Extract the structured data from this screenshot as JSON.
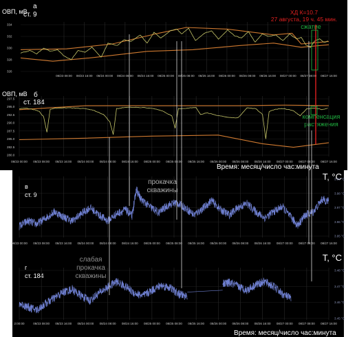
{
  "colors": {
    "background": "#000000",
    "grid": "#2a2a2a",
    "orvl": "#c8c86a",
    "envelope": "#d07a30",
    "temperature": "#6e7fd0",
    "marker_red": "#e02020",
    "marker_green": "#20b040",
    "guide": "#d8d8d8",
    "text": "#ffffff",
    "dim_text": "#c8c8c8",
    "temp_text": "#8a93b8"
  },
  "annotations": {
    "xd_line1": "ХД К=10.7",
    "xd_line2": "27 августа, 19 ч. 45 мин.",
    "compression": "сжатие",
    "compensation_line1": "компенсация",
    "compensation_line2": "растяжения",
    "pumping_line1": "прокачка",
    "pumping_line2": "скважины",
    "weak_line1": "слабая",
    "weak_line2": "прокачка",
    "weak_line3": "скважины",
    "time_axis": "Время: месяц/число час:минута"
  },
  "chart_data": [
    {
      "type": "line",
      "panel_letter": "а",
      "station": "ст. 9",
      "ylabel": "ОВП, мВ",
      "yticks": [
        "334",
        "332",
        "330",
        "328",
        "326"
      ],
      "xticks": [
        "08/23 08:00",
        "08/23 16:00",
        "08/24 00:00",
        "08/24 08:00",
        "08/24 16:00",
        "08/25 00:00",
        "08/25 08:00",
        "08/25 16:00",
        "08/26 00:00",
        "08/26 08:00",
        "08/26 16:00",
        "08/27 00:00",
        "08/27 08:00",
        "08/27 16:00"
      ],
      "ylim": [
        325,
        335
      ],
      "series_x": [
        0,
        0.4,
        0.7,
        1.0,
        1.3,
        1.6,
        1.9,
        2.2,
        2.5,
        2.8,
        3.1,
        3.5,
        3.8,
        4.2,
        4.5,
        4.8,
        5.2,
        5.5,
        5.8,
        6.1,
        6.5,
        6.8,
        7.0,
        7.3,
        7.6,
        8.0,
        8.3,
        8.6,
        9.0,
        9.3,
        9.6,
        9.9,
        10.2,
        10.5,
        10.8,
        11.1,
        11.4,
        11.7,
        12.0,
        12.2,
        12.4,
        12.6,
        12.8,
        13.0,
        13.2,
        13.4
      ],
      "series_y": [
        328.8,
        329.4,
        328.6,
        330.0,
        329.2,
        329.6,
        328.0,
        327.2,
        329.4,
        329.0,
        330.2,
        327.8,
        331.2,
        330.6,
        332.0,
        331.6,
        333.2,
        331.2,
        333.8,
        332.4,
        334.2,
        334.6,
        333.4,
        334.8,
        331.8,
        333.6,
        334.2,
        332.2,
        334.4,
        333.0,
        332.4,
        334.0,
        331.4,
        333.4,
        332.8,
        333.2,
        331.8,
        333.4,
        332.2,
        332.6,
        330.8,
        330.2,
        331.8,
        332.2,
        331.4,
        331.8
      ],
      "upper_x": [
        0,
        2.0,
        4.0,
        6.0,
        7.2,
        9.0,
        11.0,
        11.8,
        12.2,
        13.4
      ],
      "upper_y": [
        329.6,
        329.8,
        331.0,
        333.6,
        335.0,
        334.6,
        333.2,
        333.6,
        331.0,
        331.6
      ],
      "lower_x": [
        0,
        1.4,
        3.0,
        5.5,
        7.5,
        9.5,
        11.0,
        12.2,
        13.4
      ],
      "lower_y": [
        327.6,
        326.8,
        327.6,
        329.2,
        329.6,
        330.6,
        331.2,
        330.2,
        330.8
      ]
    },
    {
      "type": "line",
      "panel_letter": "б",
      "station": "ст. 184",
      "ylabel": "ОВП, мВ",
      "yticks": [
        "297.5",
        "295.0",
        "292.5",
        "290.0",
        "287.5",
        "285.0",
        "282.5",
        "280.0"
      ],
      "xticks": [
        "08/23 00:00",
        "08/23 08:00",
        "08/23 16:00",
        "08/24 00:00",
        "08/24 08:00",
        "08/24 16:00",
        "08/25 00:00",
        "08/25 08:00",
        "08/25 16:00",
        "08/26 00:00",
        "08/26 08:00",
        "08/26 16:00",
        "08/27 00:00",
        "08/27 08:00",
        "08/27 16:00"
      ],
      "ylim": [
        279,
        299
      ],
      "series_x": [
        0,
        0.3,
        0.6,
        0.9,
        1.1,
        1.25,
        1.4,
        1.7,
        2.2,
        2.6,
        3.0,
        3.4,
        3.8,
        4.1,
        4.25,
        4.4,
        4.7,
        5.2,
        5.6,
        6.0,
        6.4,
        6.9,
        7.05,
        7.2,
        7.6,
        8.0,
        8.2,
        8.5,
        9.0,
        9.5,
        9.9,
        10.3,
        10.7,
        11.0,
        11.15,
        11.3,
        11.6,
        12.0,
        12.4,
        12.7,
        13.0,
        13.4,
        13.7,
        14.0
      ],
      "series_y": [
        296.2,
        296.4,
        296.0,
        295.2,
        293.0,
        287.0,
        296.0,
        296.4,
        296.6,
        296.4,
        296.2,
        295.4,
        294.0,
        291.0,
        286.0,
        296.2,
        296.6,
        296.8,
        296.6,
        296.4,
        295.6,
        293.4,
        288.6,
        296.2,
        296.4,
        296.6,
        293.8,
        294.6,
        293.4,
        292.8,
        292.6,
        296.6,
        296.2,
        294.0,
        284.4,
        295.0,
        296.0,
        296.2,
        295.4,
        293.4,
        296.2,
        296.4,
        295.8,
        296.6
      ],
      "upper_x": [
        0,
        3.0,
        7.0,
        10.0,
        12.0,
        14.0
      ],
      "upper_y": [
        295.8,
        297.4,
        297.4,
        297.4,
        297.6,
        297.4
      ],
      "lower_x": [
        0,
        3.0,
        6.0,
        9.0,
        11.0,
        12.4,
        14.0
      ],
      "lower_y": [
        284.0,
        284.6,
        285.4,
        285.8,
        282.4,
        281.0,
        282.8
      ]
    },
    {
      "type": "line",
      "panel_letter": "в",
      "station": "ст. 9",
      "ylabel": "T, °C",
      "yticks": [
        "3.99 °C",
        "3.98 °C",
        "3.97 °C",
        "3.96 °C",
        "3.95 °C"
      ],
      "xticks": [
        "08/23 00:00",
        "08/23 08:00",
        "08/23 16:00",
        "08/24 00:00",
        "08/24 08:00",
        "08/24 16:00",
        "08/25 00:00",
        "08/25 08:00",
        "08/25 16:00",
        "08/26 00:00",
        "08/26 08:00",
        "08/26 16:00",
        "08/27 00:00",
        "08/27 08:00",
        "08/27 16:00"
      ],
      "ylim": [
        3.945,
        3.995
      ],
      "series_x": [
        0,
        0.4,
        0.8,
        1.2,
        1.6,
        2.0,
        2.4,
        2.8,
        3.2,
        3.6,
        4.0,
        4.4,
        4.8,
        5.1,
        5.3,
        5.5,
        5.9,
        6.3,
        6.7,
        7.1,
        7.5,
        7.9,
        8.3,
        8.7,
        9.1,
        9.5,
        9.9,
        10.3,
        10.7,
        11.1,
        11.5,
        11.9,
        12.3,
        12.6,
        12.9,
        13.3,
        13.7,
        14.0
      ],
      "series_y": [
        3.952,
        3.957,
        3.954,
        3.96,
        3.966,
        3.961,
        3.957,
        3.964,
        3.97,
        3.963,
        3.957,
        3.964,
        3.968,
        3.962,
        3.988,
        3.978,
        3.971,
        3.965,
        3.972,
        3.975,
        3.97,
        3.963,
        3.969,
        3.977,
        3.968,
        3.963,
        3.97,
        3.974,
        3.966,
        3.96,
        3.966,
        3.971,
        3.96,
        3.953,
        3.962,
        3.966,
        3.978,
        3.976
      ],
      "noise": 0.004
    },
    {
      "type": "line",
      "panel_letter": "г",
      "station": "ст. 184",
      "ylabel": "T, °C",
      "yticks": [
        "3.48 °C",
        "3.47 °C",
        "3.46 °C",
        "3.45 °C"
      ],
      "xticks": [
        "2:00:00",
        "08/23 08:00",
        "08/23 16:00",
        "08/24 00:00",
        "08/24 08:00",
        "08/24 16:00",
        "08/25 00:00",
        "08/25 08:00",
        "08/25 16:00",
        "08/26 00:00",
        "08/26 08:00",
        "08/26 16:00",
        "08/27 00:00",
        "08/27 08:00",
        "08/27 16:00"
      ],
      "ylim": [
        3.443,
        3.488
      ],
      "series_x": [
        0,
        0.4,
        0.8,
        1.2,
        1.6,
        2.0,
        2.4,
        2.8,
        3.2,
        3.6,
        4.0,
        4.4,
        4.8,
        5.2,
        5.6,
        6.0,
        6.4,
        6.8,
        7.2,
        7.5,
        7.9,
        8.3,
        8.7,
        9.1,
        9.5,
        9.9,
        10.3,
        10.7,
        11.1,
        11.5,
        11.9,
        12.3
      ],
      "series_y": [
        3.456,
        3.452,
        3.449,
        3.456,
        3.462,
        3.468,
        3.471,
        3.464,
        3.459,
        3.467,
        3.473,
        3.479,
        3.474,
        3.467,
        3.464,
        3.47,
        3.475,
        3.473,
        3.466,
        3.464,
        3.467,
        3.469,
        3.471,
        3.476,
        3.478,
        3.474,
        3.47,
        3.476,
        3.479,
        3.474,
        3.466,
        3.461
      ],
      "gap": [
        7.6,
        9.2
      ],
      "noise": 0.0045
    }
  ]
}
